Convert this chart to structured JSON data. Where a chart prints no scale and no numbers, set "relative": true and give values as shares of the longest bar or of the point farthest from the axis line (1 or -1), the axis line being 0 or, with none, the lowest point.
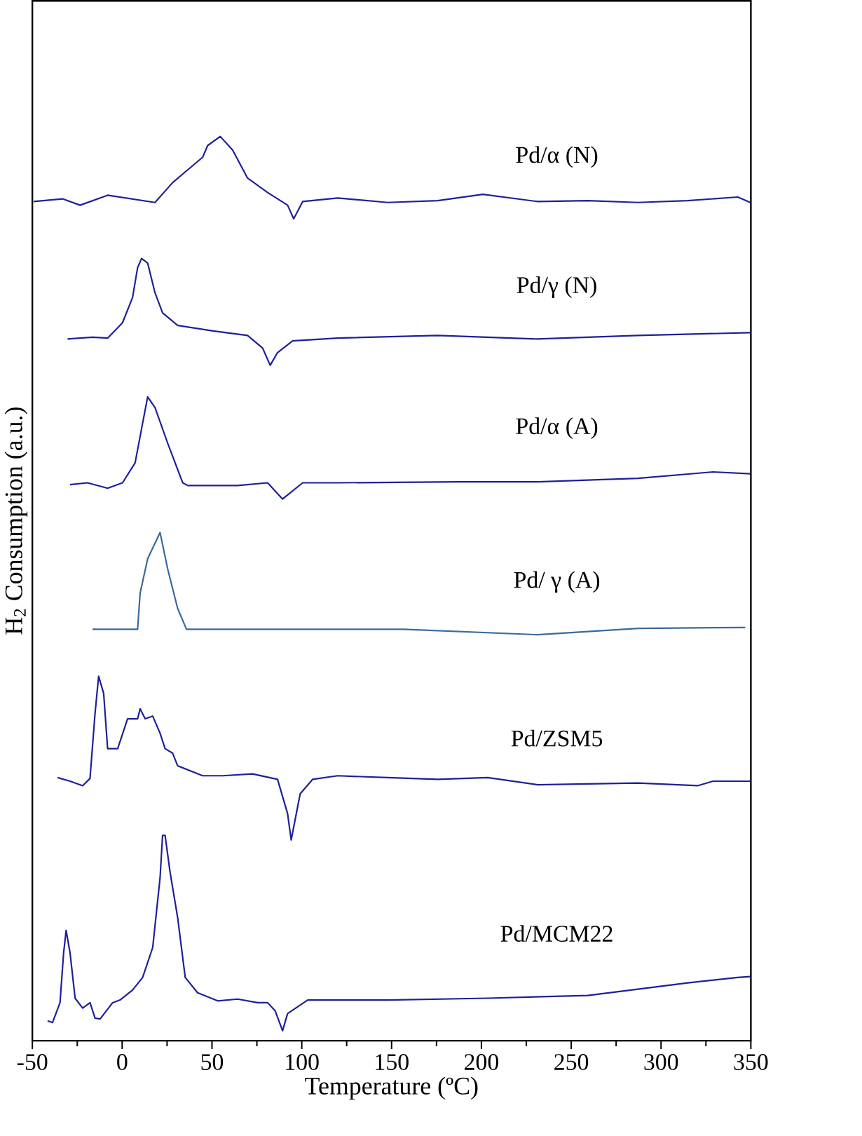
{
  "chart_data": {
    "type": "line",
    "relative": true,
    "xlabel": "Temperature (ºC)",
    "ylabel": "H$_{2}$ Consumption (a.u.)",
    "xlim": [
      -50,
      350
    ],
    "xticks": [
      -50,
      0,
      50,
      100,
      150,
      200,
      250,
      300,
      350
    ],
    "series": [
      {
        "name": "Pd/α (N)",
        "color": "#1f1f9a",
        "x": [
          -49.3,
          -33.2,
          -23.4,
          -8.1,
          18.3,
          28.1,
          44.8,
          47.6,
          54.6,
          61.5,
          69.8,
          81,
          92.1,
          95.5,
          100.5,
          120,
          147.8,
          175.7,
          200.8,
          231.4,
          259.2,
          287.1,
          314.9,
          342.7,
          349.7
        ],
        "values": [
          0.928,
          0.931,
          0.924,
          0.935,
          0.927,
          0.949,
          0.977,
          0.99,
          1,
          0.985,
          0.954,
          0.938,
          0.924,
          0.909,
          0.928,
          0.932,
          0.927,
          0.929,
          0.936,
          0.928,
          0.929,
          0.927,
          0.929,
          0.933,
          0.927
        ]
      },
      {
        "name": "Pd/γ (N)",
        "color": "#1f1f9a",
        "x": [
          -30.4,
          -16.5,
          -8.1,
          0.2,
          5.8,
          8.6,
          10.8,
          14.2,
          18.3,
          22.5,
          30.9,
          50.4,
          69.8,
          78.2,
          82.4,
          86.5,
          94.9,
          120,
          175.7,
          231.4,
          287.1,
          349.7
        ],
        "values": [
          0.776,
          0.778,
          0.777,
          0.794,
          0.822,
          0.855,
          0.865,
          0.86,
          0.827,
          0.805,
          0.791,
          0.785,
          0.78,
          0.766,
          0.747,
          0.761,
          0.774,
          0.777,
          0.78,
          0.776,
          0.78,
          0.783
        ]
      },
      {
        "name": "Pd/α (A)",
        "color": "#1f1f9a",
        "x": [
          -29,
          -19.3,
          -8.1,
          0.2,
          7.2,
          11.4,
          14.2,
          18.3,
          25.3,
          33.7,
          36.5,
          64.3,
          81,
          89.3,
          100.5,
          120,
          186.8,
          231.4,
          287.1,
          328.9,
          349.7
        ],
        "values": [
          0.615,
          0.617,
          0.611,
          0.617,
          0.639,
          0.683,
          0.712,
          0.7,
          0.661,
          0.617,
          0.614,
          0.614,
          0.617,
          0.599,
          0.617,
          0.617,
          0.618,
          0.618,
          0.622,
          0.629,
          0.627
        ]
      },
      {
        "name": "Pd/ γ (A)",
        "color": "#3a6a9a",
        "x": [
          -16.5,
          8.6,
          10,
          14.2,
          21.1,
          25.3,
          30.9,
          35.8,
          156.2,
          231.4,
          287.1,
          346.9
        ],
        "values": [
          0.455,
          0.455,
          0.495,
          0.533,
          0.562,
          0.522,
          0.478,
          0.455,
          0.455,
          0.449,
          0.456,
          0.457
        ]
      },
      {
        "name": "Pd/ZSM5",
        "color": "#1f1f9a",
        "x": [
          -36,
          -29,
          -22,
          -17.9,
          -15.1,
          -13.1,
          -10.3,
          -8.1,
          -2.5,
          3,
          8.6,
          10,
          12.8,
          17,
          21.1,
          23.9,
          28.1,
          30.9,
          44.8,
          56,
          72.6,
          86.5,
          92.1,
          94.1,
          99.1,
          106,
          120,
          147.8,
          175.7,
          203.5,
          231.4,
          287.1,
          320.4,
          328.9,
          349.7
        ],
        "values": [
          0.291,
          0.287,
          0.282,
          0.29,
          0.362,
          0.403,
          0.384,
          0.323,
          0.323,
          0.356,
          0.356,
          0.367,
          0.356,
          0.359,
          0.34,
          0.323,
          0.318,
          0.304,
          0.293,
          0.293,
          0.295,
          0.289,
          0.251,
          0.222,
          0.273,
          0.289,
          0.293,
          0.291,
          0.289,
          0.291,
          0.283,
          0.285,
          0.282,
          0.287,
          0.287
        ]
      },
      {
        "name": "Pd/MCM22",
        "color": "#1f1f9a",
        "x": [
          -41.5,
          -38.8,
          -34.6,
          -32.6,
          -31.2,
          -29,
          -26.2,
          -22,
          -17.9,
          -15.1,
          -12.3,
          -5.3,
          -1.2,
          5.8,
          11.4,
          17,
          21.1,
          22.5,
          23.9,
          26.7,
          30.9,
          35.1,
          42,
          53.2,
          64.3,
          75.5,
          81,
          85.2,
          89.3,
          92.1,
          103.3,
          147.8,
          203.5,
          259.2,
          287.1,
          314.9,
          342.7,
          349.7
        ],
        "values": [
          0.022,
          0.02,
          0.042,
          0.097,
          0.122,
          0.097,
          0.047,
          0.036,
          0.042,
          0.025,
          0.024,
          0.042,
          0.045,
          0.056,
          0.07,
          0.103,
          0.18,
          0.227,
          0.227,
          0.186,
          0.136,
          0.07,
          0.053,
          0.044,
          0.046,
          0.042,
          0.042,
          0.033,
          0.011,
          0.03,
          0.045,
          0.045,
          0.047,
          0.05,
          0.057,
          0.064,
          0.07,
          0.071
        ]
      }
    ]
  }
}
